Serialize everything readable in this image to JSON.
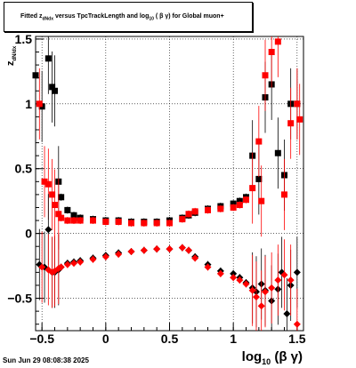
{
  "window": {
    "title_main": "Fitted  z",
    "title_sub": "dNdx",
    "title_rest": "  versus TpcTrackLength and log",
    "title_sub2": "10",
    "title_tail": " ( β γ) for Global muon+",
    "timestamp": "Sun Jun 29 08:08:38 2025"
  },
  "axes": {
    "xlabel_main": "log",
    "xlabel_sub": "10",
    "xlabel_tail": " (β γ)",
    "ylabel_main": "z",
    "ylabel_sub": "dN/dx"
  },
  "colors": {
    "black_series": "#000000",
    "red_series": "#ff0000",
    "grid": "#000000"
  },
  "chart_data": {
    "type": "scatter",
    "xlim": [
      -0.55,
      1.55
    ],
    "ylim": [
      -0.75,
      1.52
    ],
    "xticks": [
      -0.5,
      0,
      0.5,
      1,
      1.5
    ],
    "xtick_labels": [
      "−0.5",
      "0",
      "0.5",
      "1",
      "1.5"
    ],
    "yticks": [
      -0.5,
      0,
      0.5,
      1,
      1.5
    ],
    "ytick_labels": [
      "−0.5",
      "0",
      "0.5",
      "1",
      "1.5"
    ],
    "grid": true,
    "series": [
      {
        "color": "black",
        "marker": "square",
        "x": [
          -0.55,
          -0.5,
          -0.45,
          -0.42,
          -0.4,
          -0.37,
          -0.35,
          -0.3,
          -0.25,
          -0.2,
          -0.1,
          0.0,
          0.1,
          0.2,
          0.3,
          0.4,
          0.5,
          0.6,
          0.65,
          0.7,
          0.8,
          0.9,
          1.0,
          1.05,
          1.1,
          1.15,
          1.2,
          1.25,
          1.3,
          1.35,
          1.4,
          1.45,
          1.5
        ],
        "y": [
          1.22,
          0.98,
          1.35,
          1.13,
          1.1,
          0.4,
          0.28,
          0.18,
          0.14,
          0.12,
          0.11,
          0.1,
          0.1,
          0.09,
          0.09,
          0.09,
          0.1,
          0.12,
          0.14,
          0.16,
          0.19,
          0.21,
          0.23,
          0.25,
          0.28,
          0.6,
          0.42,
          1.05,
          1.15,
          0.62,
          0.45,
          1.0,
          1.0
        ]
      },
      {
        "color": "red",
        "marker": "square",
        "x": [
          -0.52,
          -0.48,
          -0.45,
          -0.42,
          -0.4,
          -0.37,
          -0.35,
          -0.3,
          -0.25,
          -0.2,
          -0.1,
          0.0,
          0.1,
          0.2,
          0.3,
          0.4,
          0.5,
          0.6,
          0.65,
          0.7,
          0.8,
          0.9,
          1.0,
          1.05,
          1.1,
          1.15,
          1.2,
          1.22,
          1.25,
          1.3,
          1.35,
          1.4,
          1.45,
          1.5,
          1.52
        ],
        "y": [
          1.0,
          0.4,
          0.38,
          0.3,
          0.22,
          0.15,
          0.12,
          0.1,
          0.1,
          0.1,
          0.1,
          0.09,
          0.09,
          0.08,
          0.08,
          0.08,
          0.08,
          0.11,
          0.15,
          0.17,
          0.18,
          0.19,
          0.2,
          0.22,
          0.26,
          0.35,
          0.71,
          0.25,
          1.22,
          1.4,
          1.48,
          0.3,
          0.85,
          1.0,
          0.88
        ]
      },
      {
        "color": "black",
        "marker": "diamond",
        "x": [
          -0.52,
          -0.48,
          -0.45,
          -0.42,
          -0.4,
          -0.37,
          -0.35,
          -0.3,
          -0.25,
          -0.2,
          -0.1,
          0.0,
          0.1,
          0.2,
          0.3,
          0.4,
          0.5,
          0.6,
          0.65,
          0.7,
          0.8,
          0.9,
          1.0,
          1.05,
          1.1,
          1.15,
          1.18,
          1.22,
          1.25,
          1.3,
          1.35,
          1.38,
          1.42,
          1.45,
          1.5
        ],
        "y": [
          -0.24,
          -0.26,
          0.03,
          -0.3,
          -0.3,
          -0.28,
          -0.26,
          -0.23,
          -0.22,
          -0.21,
          -0.19,
          -0.17,
          -0.15,
          -0.14,
          -0.13,
          -0.12,
          -0.12,
          -0.11,
          -0.13,
          -0.18,
          -0.24,
          -0.29,
          -0.31,
          -0.34,
          -0.38,
          -0.42,
          -0.45,
          -0.39,
          -0.44,
          -0.52,
          -0.43,
          -0.3,
          -0.62,
          -0.4,
          -0.3
        ]
      },
      {
        "color": "red",
        "marker": "diamond",
        "x": [
          -0.5,
          -0.45,
          -0.42,
          -0.4,
          -0.37,
          -0.35,
          -0.3,
          -0.25,
          -0.2,
          -0.1,
          0.0,
          0.1,
          0.2,
          0.3,
          0.4,
          0.5,
          0.6,
          0.65,
          0.7,
          0.8,
          0.9,
          1.0,
          1.05,
          1.1,
          1.15,
          1.18,
          1.22,
          1.25,
          1.3,
          1.35,
          1.4,
          1.45,
          1.5
        ],
        "y": [
          -0.26,
          -0.28,
          -0.3,
          -0.29,
          -0.27,
          -0.26,
          -0.24,
          -0.23,
          -0.22,
          -0.2,
          -0.18,
          -0.16,
          -0.14,
          -0.13,
          -0.12,
          -0.12,
          -0.11,
          -0.13,
          -0.19,
          -0.26,
          -0.31,
          -0.34,
          -0.36,
          -0.39,
          -0.44,
          -0.49,
          -0.56,
          -0.45,
          -0.42,
          -0.36,
          -0.32,
          -0.36,
          -0.7
        ]
      }
    ]
  }
}
